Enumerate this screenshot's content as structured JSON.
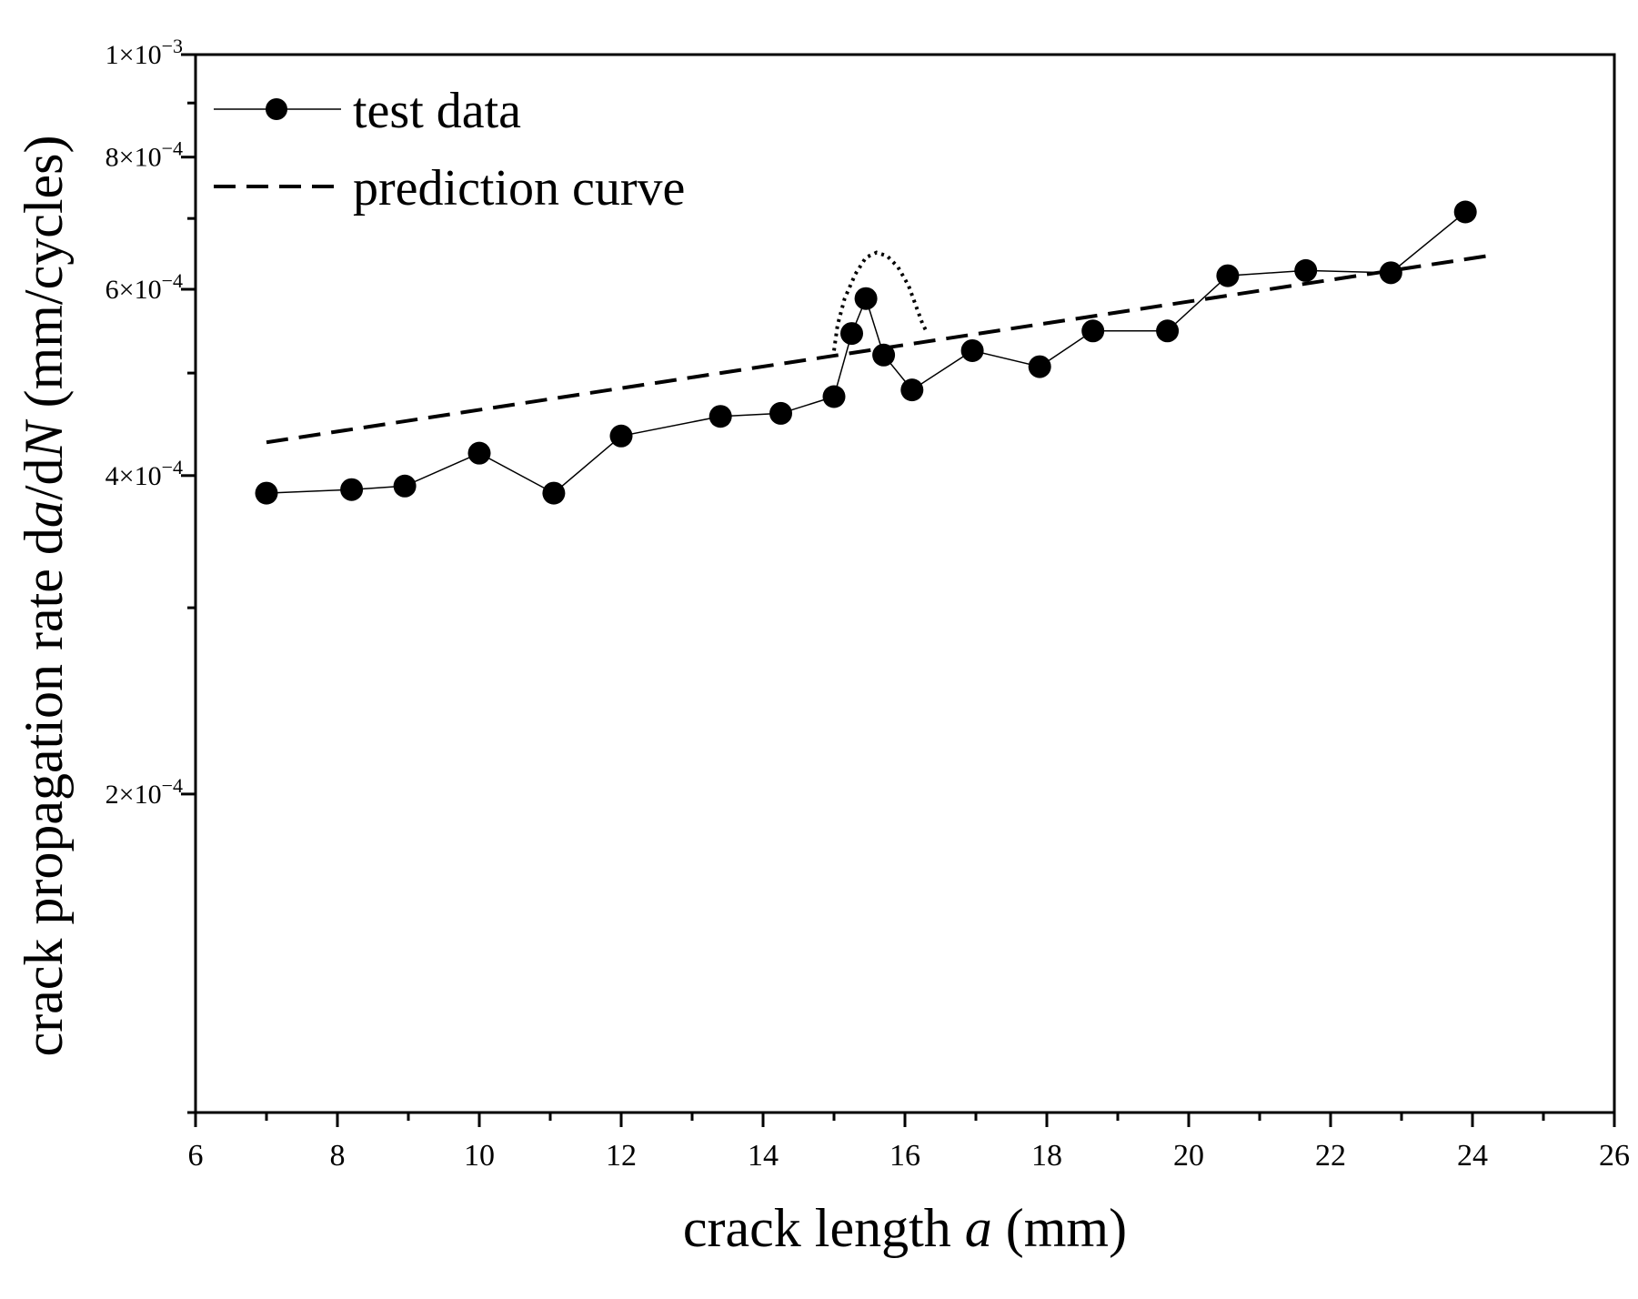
{
  "chart_data": {
    "type": "line",
    "title": "",
    "xlabel": {
      "prefix": "crack length ",
      "var": "a",
      "suffix": " (mm)"
    },
    "ylabel": {
      "prefix": "crack propagation rate d",
      "var1": "a",
      "mid": "/d",
      "var2": "N",
      "suffix": " (mm/cycles)"
    },
    "xlim": [
      6,
      26
    ],
    "ylim": [
      0.0001,
      0.001
    ],
    "yscale": "log",
    "grid": false,
    "legend_position": "top-left",
    "x_ticks": [
      {
        "value": 6,
        "label": "6"
      },
      {
        "value": 8,
        "label": "8"
      },
      {
        "value": 10,
        "label": "10"
      },
      {
        "value": 12,
        "label": "12"
      },
      {
        "value": 14,
        "label": "14"
      },
      {
        "value": 16,
        "label": "16"
      },
      {
        "value": 18,
        "label": "18"
      },
      {
        "value": 20,
        "label": "20"
      },
      {
        "value": 22,
        "label": "22"
      },
      {
        "value": 24,
        "label": "24"
      },
      {
        "value": 26,
        "label": "26"
      }
    ],
    "y_ticks": [
      {
        "value": 0.0002,
        "mantissa": "2×10",
        "exp": "−4"
      },
      {
        "value": 0.0004,
        "mantissa": "4×10",
        "exp": "−4"
      },
      {
        "value": 0.0006,
        "mantissa": "6×10",
        "exp": "−4"
      },
      {
        "value": 0.0008,
        "mantissa": "8×10",
        "exp": "−4"
      },
      {
        "value": 0.001,
        "mantissa": "1×10",
        "exp": "−3"
      }
    ],
    "series": [
      {
        "name": "test data",
        "style": "line-with-circle-markers",
        "color": "#000000",
        "x": [
          7.0,
          8.2,
          8.95,
          10.0,
          11.05,
          12.0,
          13.4,
          14.25,
          15.0,
          15.25,
          15.45,
          15.7,
          16.1,
          16.95,
          17.9,
          18.65,
          19.7,
          20.55,
          21.65,
          22.85,
          23.9
        ],
        "y": [
          0.000385,
          0.000388,
          0.000391,
          0.00042,
          0.000385,
          0.000436,
          0.000455,
          0.000458,
          0.000475,
          0.000545,
          0.000588,
          0.00052,
          0.000482,
          0.000525,
          0.000507,
          0.000548,
          0.000548,
          0.000618,
          0.000625,
          0.000622,
          0.00071
        ]
      },
      {
        "name": "prediction curve",
        "style": "dashed",
        "color": "#000000",
        "x": [
          7.0,
          24.2
        ],
        "y": [
          0.00043,
          0.000645
        ]
      }
    ],
    "annotations": [
      {
        "type": "dotted-curve",
        "description": "local peak near a ≈ 15.5 mm",
        "x": [
          15.0,
          15.05,
          15.15,
          15.3,
          15.45,
          15.6,
          15.75,
          15.9,
          16.05,
          16.15,
          16.25,
          16.3
        ],
        "y": [
          0.000525,
          0.000555,
          0.000588,
          0.00062,
          0.000643,
          0.00065,
          0.000645,
          0.00063,
          0.000605,
          0.00058,
          0.000556,
          0.000548
        ]
      }
    ]
  }
}
